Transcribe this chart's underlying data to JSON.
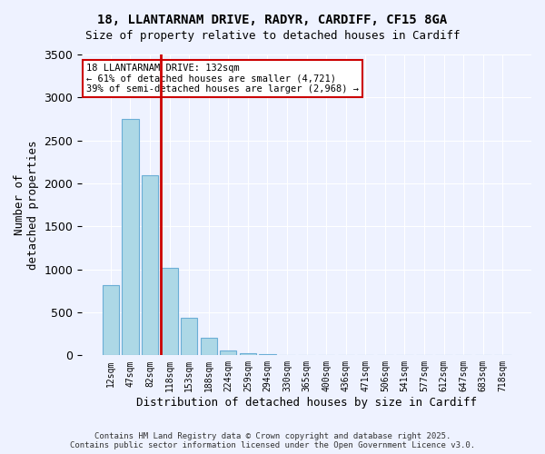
{
  "title_line1": "18, LLANTARNAM DRIVE, RADYR, CARDIFF, CF15 8GA",
  "title_line2": "Size of property relative to detached houses in Cardiff",
  "xlabel": "Distribution of detached houses by size in Cardiff",
  "ylabel": "Number of\ndetached properties",
  "categories": [
    "12sqm",
    "47sqm",
    "82sqm",
    "118sqm",
    "153sqm",
    "188sqm",
    "224sqm",
    "259sqm",
    "294sqm",
    "330sqm",
    "365sqm",
    "400sqm",
    "436sqm",
    "471sqm",
    "506sqm",
    "541sqm",
    "577sqm",
    "612sqm",
    "647sqm",
    "683sqm",
    "718sqm"
  ],
  "bar_values": [
    820,
    2750,
    2100,
    1020,
    440,
    200,
    60,
    25,
    10,
    5,
    3,
    2,
    1,
    1,
    0,
    0,
    0,
    0,
    0,
    0,
    0
  ],
  "bar_color": "#add8e6",
  "bar_edge_color": "#6baed6",
  "vline_color": "#cc0000",
  "ylim": [
    0,
    3500
  ],
  "yticks": [
    0,
    500,
    1000,
    1500,
    2000,
    2500,
    3000,
    3500
  ],
  "annotation_title": "18 LLANTARNAM DRIVE: 132sqm",
  "annotation_line2": "← 61% of detached houses are smaller (4,721)",
  "annotation_line3": "39% of semi-detached houses are larger (2,968) →",
  "annotation_box_color": "#ffffff",
  "annotation_box_edge": "#cc0000",
  "footer_line1": "Contains HM Land Registry data © Crown copyright and database right 2025.",
  "footer_line2": "Contains public sector information licensed under the Open Government Licence v3.0.",
  "bg_color": "#eef2ff",
  "plot_bg_color": "#eef2ff"
}
